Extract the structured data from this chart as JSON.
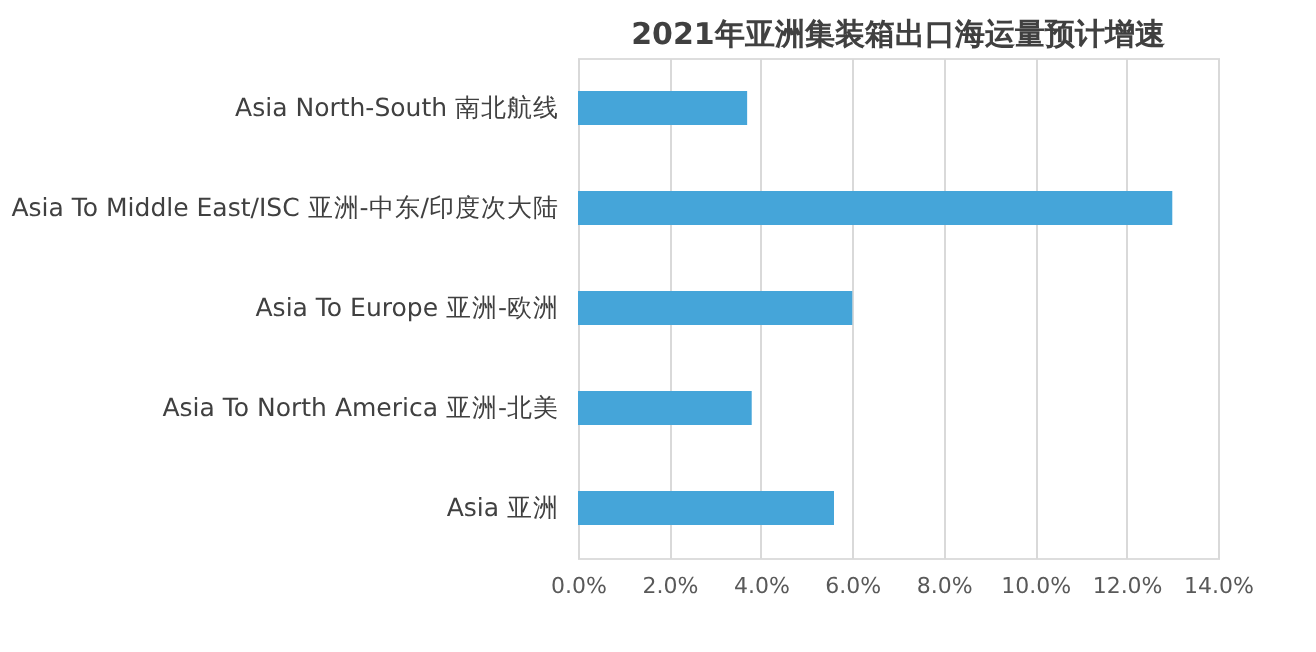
{
  "chart_data": {
    "type": "bar",
    "orientation": "horizontal",
    "title": "2021年亚洲集装箱出口海运量预计增速",
    "categories": [
      "Asia North-South 南北航线",
      "Asia To Middle East/ISC 亚洲-中东/印度次大陆",
      "Asia To Europe 亚洲-欧洲",
      "Asia To North America 亚洲-北美",
      "Asia 亚洲"
    ],
    "values": [
      3.7,
      13.0,
      6.0,
      3.8,
      5.6
    ],
    "color": "#45a5d9",
    "xlim": [
      0,
      14
    ],
    "xticks": [
      {
        "value": 0,
        "label": "0.0%"
      },
      {
        "value": 2,
        "label": "2.0%"
      },
      {
        "value": 4,
        "label": "4.0%"
      },
      {
        "value": 6,
        "label": "6.0%"
      },
      {
        "value": 8,
        "label": "8.0%"
      },
      {
        "value": 10,
        "label": "10.0%"
      },
      {
        "value": 12,
        "label": "12.0%"
      },
      {
        "value": 14,
        "label": "14.0%"
      }
    ],
    "grid": "x"
  }
}
